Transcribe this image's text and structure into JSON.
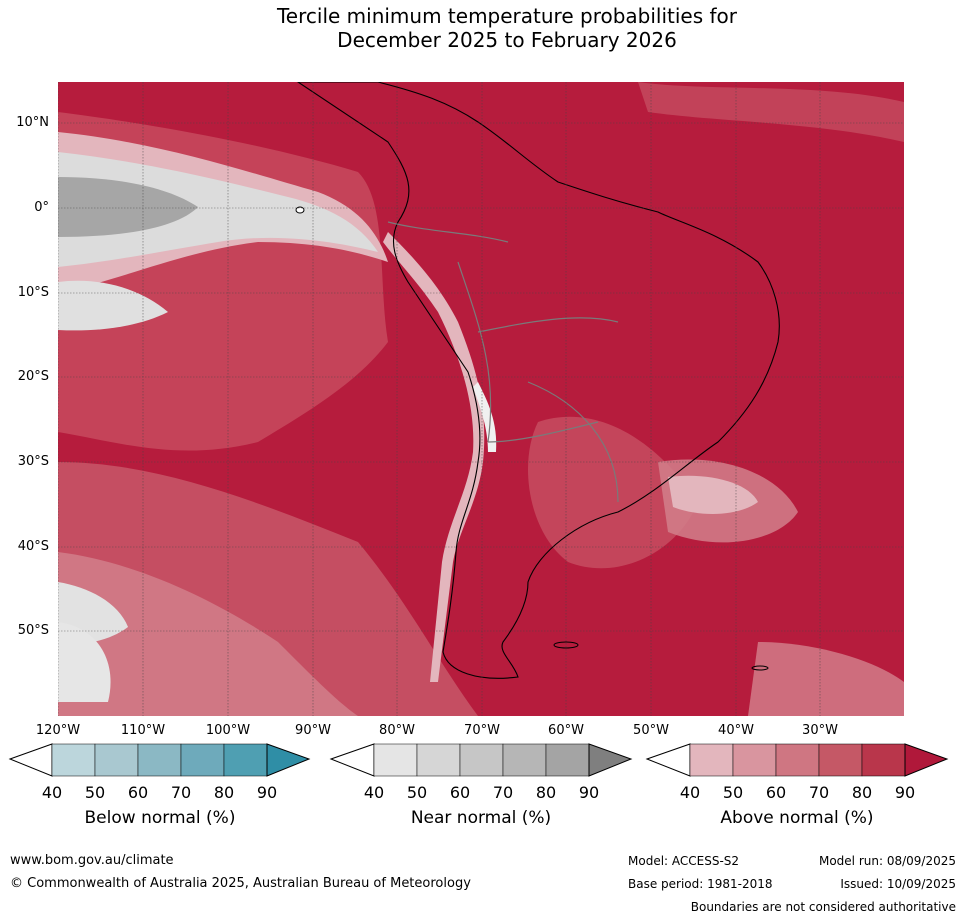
{
  "title": {
    "line1": "Tercile minimum temperature probabilities for",
    "line2": "December 2025 to February 2026"
  },
  "map": {
    "lat_labels": [
      "10°N",
      "0°",
      "10°S",
      "20°S",
      "30°S",
      "40°S",
      "50°S"
    ],
    "lon_labels": [
      "120°W",
      "110°W",
      "100°W",
      "90°W",
      "80°W",
      "70°W",
      "60°W",
      "50°W",
      "40°W",
      "30°W"
    ]
  },
  "colorbars": [
    {
      "title": "Below normal (%)",
      "ticks": [
        "40",
        "50",
        "60",
        "70",
        "80",
        "90"
      ],
      "colors": [
        "#ffffff",
        "#bcd6dc",
        "#a9c8d0",
        "#8bb8c4",
        "#6eaabb",
        "#4f9fb2",
        "#2f8ea6"
      ]
    },
    {
      "title": "Near normal (%)",
      "ticks": [
        "40",
        "50",
        "60",
        "70",
        "80",
        "90"
      ],
      "colors": [
        "#ffffff",
        "#e5e5e5",
        "#d6d6d6",
        "#c6c6c6",
        "#b6b6b6",
        "#a4a4a4",
        "#7f7f7f"
      ]
    },
    {
      "title": "Above normal (%)",
      "ticks": [
        "40",
        "50",
        "60",
        "70",
        "80",
        "90"
      ],
      "colors": [
        "#ffffff",
        "#e3b6bd",
        "#d9959f",
        "#cf7682",
        "#c55866",
        "#b9364b",
        "#b0183a"
      ]
    }
  ],
  "footer": {
    "website": "www.bom.gov.au/climate",
    "copyright": "© Commonwealth of Australia 2025, Australian Bureau of Meteorology",
    "model": "Model: ACCESS-S2",
    "base_period": "Base period: 1981-2018",
    "model_run": "Model run: 08/09/2025",
    "issued": "Issued: 10/09/2025",
    "disclaimer": "Boundaries are not considered authoritative"
  }
}
